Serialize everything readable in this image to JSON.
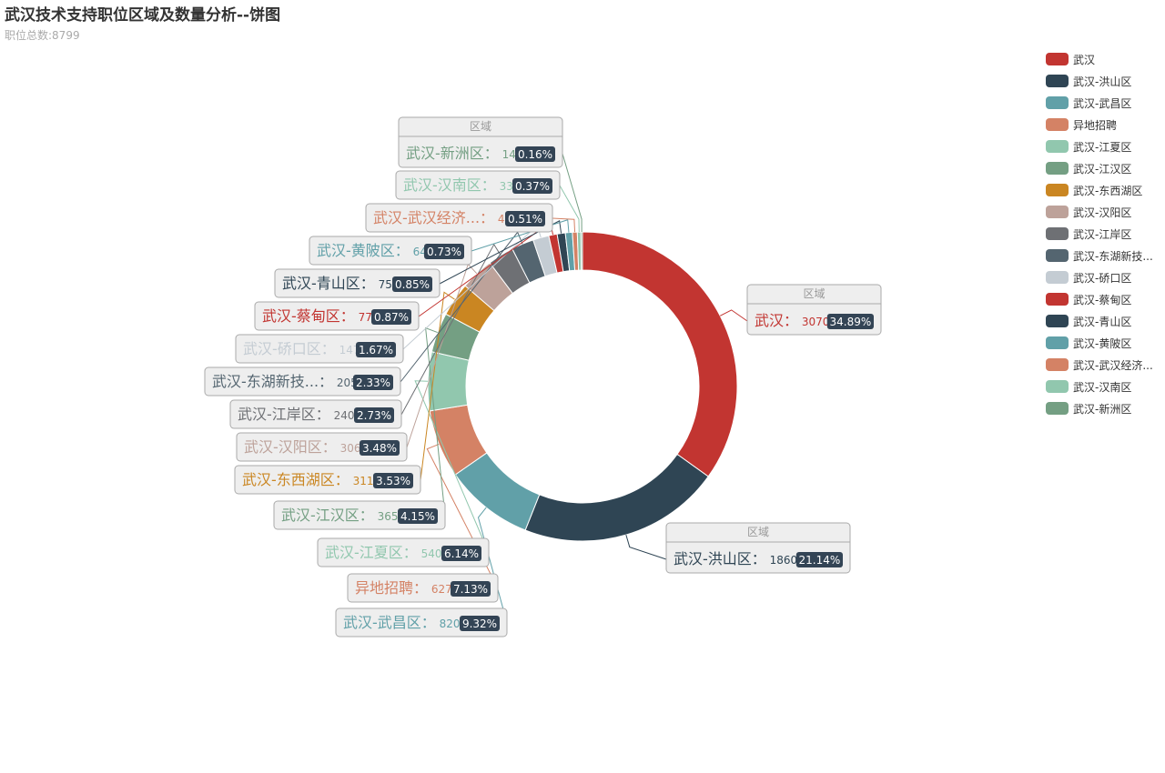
{
  "title": "武汉技术支持职位区域及数量分析--饼图",
  "subtitle": "职位总数:8799",
  "chart_data": {
    "type": "pie",
    "variant": "donut",
    "series_name": "区域",
    "total": 8799,
    "categories": [
      "武汉",
      "武汉-洪山区",
      "武汉-武昌区",
      "异地招聘",
      "武汉-江夏区",
      "武汉-江汉区",
      "武汉-东西湖区",
      "武汉-汉阳区",
      "武汉-江岸区",
      "武汉-东湖新技术开发区",
      "武汉-硚口区",
      "武汉-蔡甸区",
      "武汉-青山区",
      "武汉-黄陂区",
      "武汉-武汉经济技术开发区",
      "武汉-汉南区",
      "武汉-新洲区"
    ],
    "values": [
      3070,
      1860,
      820,
      627,
      540,
      365,
      311,
      306,
      240,
      205,
      147,
      77,
      75,
      64,
      45,
      33,
      14
    ],
    "percents": [
      "34.89%",
      "21.14%",
      "9.32%",
      "7.13%",
      "6.14%",
      "4.15%",
      "3.53%",
      "3.48%",
      "2.73%",
      "2.33%",
      "1.67%",
      "0.87%",
      "0.85%",
      "0.73%",
      "0.51%",
      "0.37%",
      "0.16%"
    ],
    "label_names": [
      "武汉",
      "武汉-洪山区",
      "武汉-武昌区",
      "异地招聘",
      "武汉-江夏区",
      "武汉-江汉区",
      "武汉-东西湖区",
      "武汉-汉阳区",
      "武汉-江岸区",
      "武汉-东湖新技...",
      "武汉-硚口区",
      "武汉-蔡甸区",
      "武汉-青山区",
      "武汉-黄陂区",
      "武汉-武汉经济...",
      "武汉-汉南区",
      "武汉-新洲区"
    ],
    "legend_labels": [
      "武汉",
      "武汉-洪山区",
      "武汉-武昌区",
      "异地招聘",
      "武汉-江夏区",
      "武汉-江汉区",
      "武汉-东西湖区",
      "武汉-汉阳区",
      "武汉-江岸区",
      "武汉-东湖新技...",
      "武汉-硚口区",
      "武汉-蔡甸区",
      "武汉-青山区",
      "武汉-黄陂区",
      "武汉-武汉经济...",
      "武汉-汉南区",
      "武汉-新洲区"
    ],
    "colors": [
      "#c23531",
      "#2f4554",
      "#61a0a8",
      "#d48265",
      "#91c7ae",
      "#749f83",
      "#ca8622",
      "#bda29a",
      "#6e7074",
      "#546570",
      "#c4ccd3",
      "#c23531",
      "#2f4554",
      "#61a0a8",
      "#d48265",
      "#91c7ae",
      "#749f83"
    ],
    "legend_position": "top-right"
  }
}
